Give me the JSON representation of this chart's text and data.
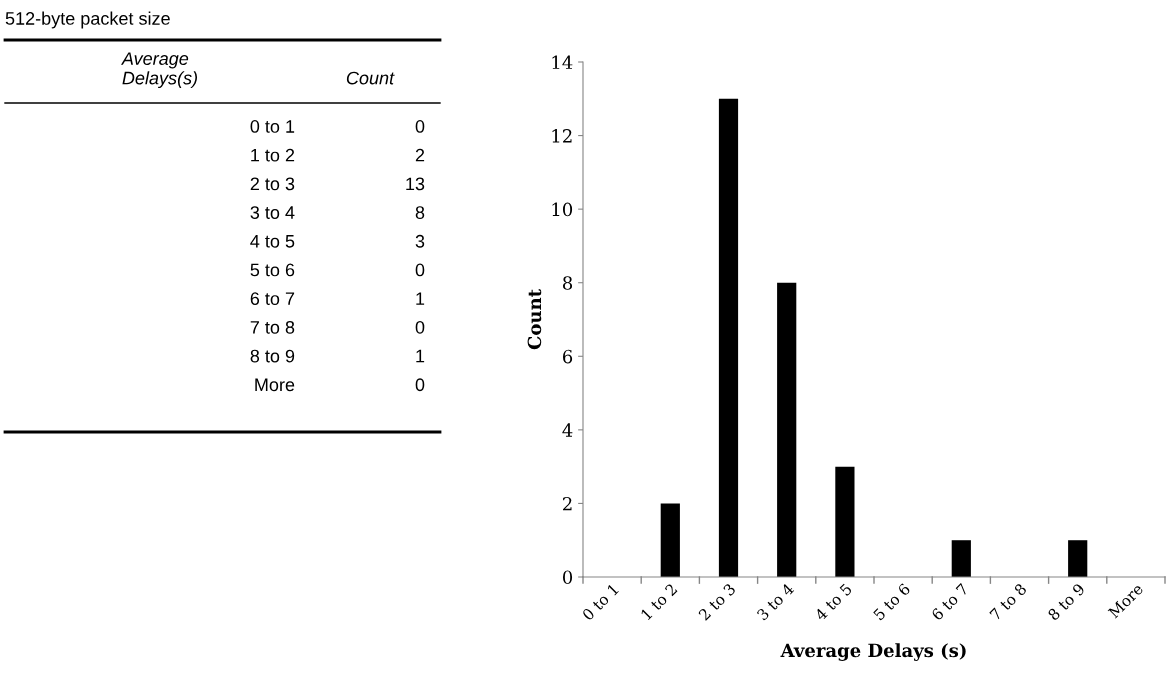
{
  "chart_data": [
    {
      "type": "other",
      "title": "512-byte packet size",
      "annotations": [
        "Average\nDelays(s)",
        "Count",
        "0 to 1",
        "0",
        "1 to 2",
        "2",
        "2 to 3",
        "13",
        "3 to 4",
        "8",
        "4 to 5",
        "3",
        "5 to 6",
        "0",
        "6 to 7",
        "1",
        "7 to 8",
        "0",
        "8 to 9",
        "1",
        "More",
        "0"
      ]
    },
    {
      "type": "bar",
      "categories": [
        "0 to 1",
        "1 to 2",
        "2 to 3",
        "3 to 4",
        "4 to 5",
        "5 to 6",
        "6 to 7",
        "7 to 8",
        "8 to 9",
        "More"
      ],
      "values": [
        0,
        2,
        13,
        8,
        3,
        0,
        1,
        0,
        1,
        0
      ],
      "color": "#000000",
      "xlabel": "Average Delays (s)",
      "ylabel": "Count",
      "ylim": [
        0,
        14
      ],
      "yticks": [
        0,
        2,
        4,
        6,
        8,
        10,
        12,
        14
      ],
      "grid": false,
      "legend": false
    }
  ]
}
